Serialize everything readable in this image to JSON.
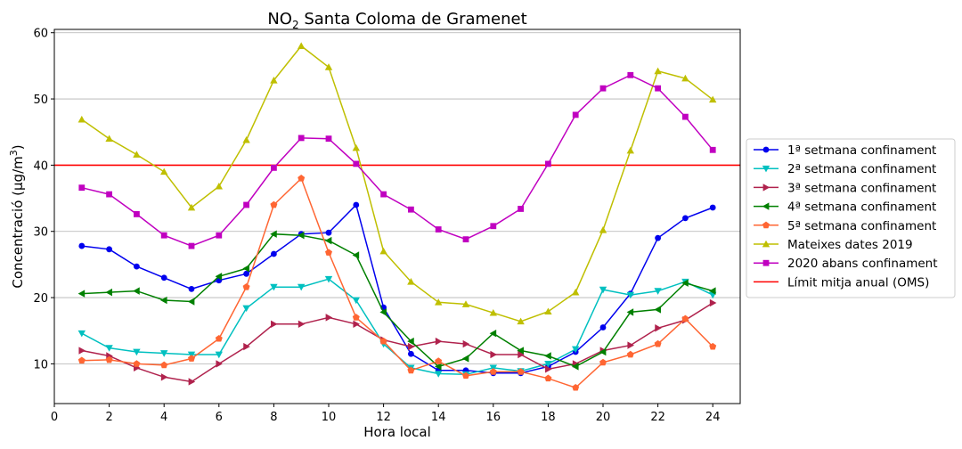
{
  "chart_data": {
    "type": "line",
    "title_main": "NO",
    "title_sub": "2",
    "title_rest": " Santa Coloma de Gramenet",
    "xlabel": "Hora local",
    "ylabel_main": "Concentració (µg/m",
    "ylabel_sup": "3",
    "ylabel_end": ")",
    "xlim": [
      0,
      25
    ],
    "ylim": [
      4,
      60.5
    ],
    "xticks": [
      "0",
      "2",
      "4",
      "6",
      "8",
      "10",
      "12",
      "14",
      "16",
      "18",
      "20",
      "22",
      "24"
    ],
    "yticks": [
      "10",
      "20",
      "30",
      "40",
      "50",
      "60"
    ],
    "grid": "horizontal",
    "legend_position": "right",
    "x": [
      1,
      2,
      3,
      4,
      5,
      6,
      7,
      8,
      9,
      10,
      11,
      12,
      13,
      14,
      15,
      16,
      17,
      18,
      19,
      20,
      21,
      22,
      23,
      24
    ],
    "series": [
      {
        "name": "1ª setmana confinament",
        "color": "#0000ee",
        "marker": "circle",
        "values": [
          27.8,
          27.3,
          24.7,
          23.0,
          21.3,
          22.6,
          23.6,
          26.6,
          29.6,
          29.8,
          34.0,
          18.5,
          11.5,
          9.0,
          9.0,
          8.6,
          8.6,
          9.6,
          11.8,
          15.5,
          20.6,
          29.0,
          32.0,
          33.6
        ]
      },
      {
        "name": "2ª setmana confinament",
        "color": "#00c0c0",
        "marker": "triangle-down",
        "values": [
          14.6,
          12.4,
          11.8,
          11.6,
          11.4,
          11.4,
          18.4,
          21.6,
          21.6,
          22.8,
          19.6,
          13.0,
          9.4,
          8.5,
          8.4,
          9.4,
          8.9,
          10.0,
          12.2,
          21.2,
          20.4,
          21.0,
          22.4,
          20.4
        ]
      },
      {
        "name": "3ª setmana confinament",
        "color": "#b0224d",
        "marker": "triangle-right",
        "values": [
          12.0,
          11.2,
          9.4,
          8.0,
          7.3,
          10.0,
          12.6,
          16.0,
          16.0,
          17.0,
          16.0,
          13.6,
          12.6,
          13.4,
          13.0,
          11.4,
          11.4,
          9.2,
          10.0,
          12.0,
          12.8,
          15.4,
          16.6,
          19.2
        ]
      },
      {
        "name": "4ª setmana confinament",
        "color": "#008000",
        "marker": "triangle-left",
        "values": [
          20.6,
          20.8,
          21.0,
          19.6,
          19.4,
          23.2,
          24.4,
          29.6,
          29.4,
          28.6,
          26.4,
          17.8,
          13.4,
          9.6,
          10.8,
          14.6,
          12.0,
          11.2,
          9.6,
          11.8,
          17.8,
          18.2,
          22.2,
          21.0
        ]
      },
      {
        "name": "5ª setmana confinament",
        "color": "#ff6633",
        "marker": "pentagon",
        "values": [
          10.5,
          10.6,
          10.0,
          9.8,
          10.8,
          13.8,
          21.6,
          34.0,
          38.0,
          26.8,
          17.0,
          13.4,
          9.0,
          10.4,
          8.2,
          8.8,
          8.8,
          7.8,
          6.4,
          10.2,
          11.4,
          13.0,
          16.8,
          12.6
        ]
      },
      {
        "name": "Mateixes dates 2019",
        "color": "#bfbf00",
        "marker": "triangle-up",
        "values": [
          46.9,
          44.0,
          41.6,
          39.0,
          33.6,
          36.8,
          43.8,
          52.8,
          58.0,
          54.8,
          42.6,
          27.0,
          22.4,
          19.3,
          19.0,
          17.7,
          16.4,
          17.9,
          20.8,
          30.2,
          42.2,
          54.2,
          53.1,
          49.9
        ]
      },
      {
        "name": "2020 abans confinament",
        "color": "#c000c0",
        "marker": "square",
        "values": [
          36.6,
          35.6,
          32.6,
          29.4,
          27.8,
          29.4,
          34.0,
          39.6,
          44.1,
          44.0,
          40.2,
          35.6,
          33.3,
          30.3,
          28.8,
          30.8,
          33.4,
          40.2,
          47.6,
          51.6,
          53.6,
          51.6,
          47.3,
          42.3
        ]
      }
    ],
    "reference_line": {
      "name": "Límit mitja anual (OMS)",
      "value": 40,
      "color": "#ff0000"
    }
  }
}
